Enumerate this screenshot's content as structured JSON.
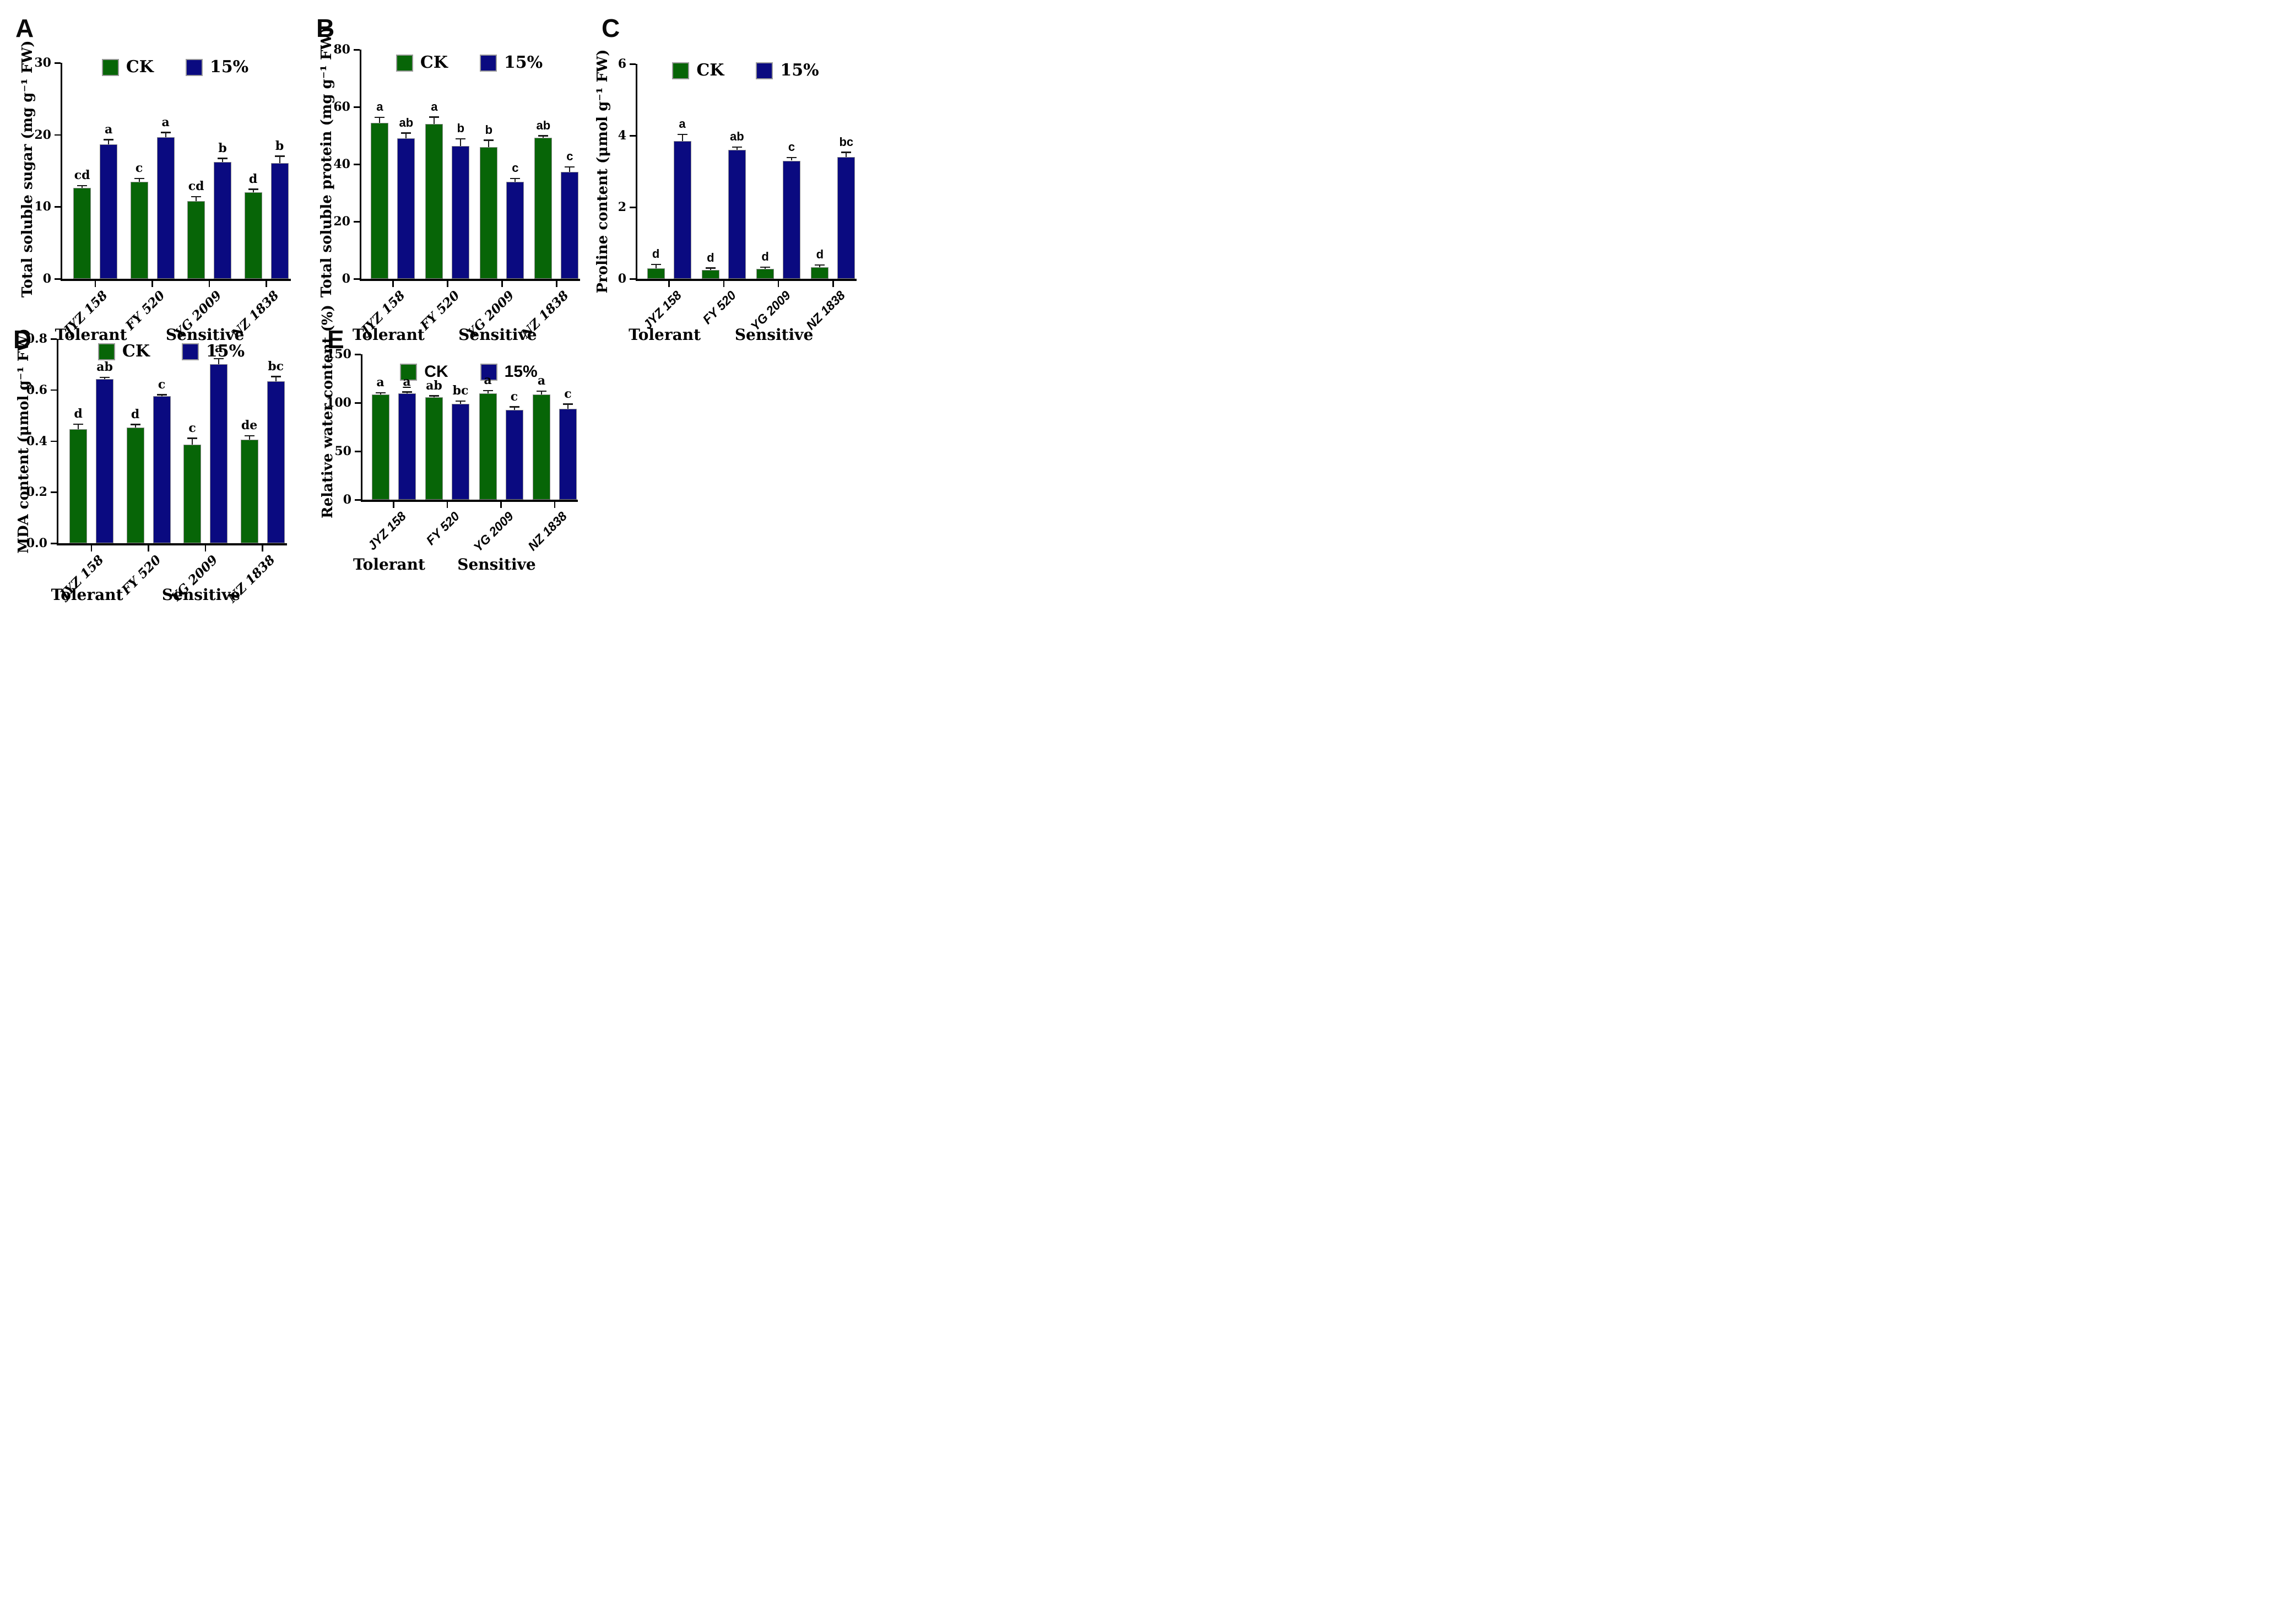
{
  "colors": {
    "ck": "#076507",
    "treatment": "#0a0a80",
    "axis": "#000000",
    "background": "#ffffff"
  },
  "chart_data": [
    {
      "type": "bar",
      "panel": "A",
      "ylabel": "Total soluble sugar (mg g⁻¹ FW)",
      "ylim": [
        0,
        30
      ],
      "ytick_values": [
        0,
        10,
        20,
        30
      ],
      "ytick_labels": [
        "0",
        "10",
        "20",
        "30"
      ],
      "categories": [
        "JYZ 158",
        "FY 520",
        "YG 2009",
        "NZ 1838"
      ],
      "category_groups": [
        {
          "label": "Tolerant",
          "at_group": 0
        },
        {
          "label": "Sensitive",
          "at_group": 2
        }
      ],
      "legend": [
        "CK",
        "15%"
      ],
      "grid": false,
      "series": [
        {
          "name": "CK",
          "color_key": "ck",
          "values": [
            12.6,
            13.5,
            10.8,
            12.0
          ],
          "errors": [
            0.3,
            0.4,
            0.6,
            0.4
          ],
          "sig_letters": [
            "cd",
            "c",
            "cd",
            "d"
          ],
          "underline": [
            false,
            false,
            false,
            false
          ]
        },
        {
          "name": "15%",
          "color_key": "treatment",
          "values": [
            18.7,
            19.7,
            16.2,
            16.1
          ],
          "errors": [
            0.6,
            0.6,
            0.5,
            0.9
          ],
          "sig_letters": [
            "a",
            "a",
            "b",
            "b"
          ],
          "underline": [
            false,
            false,
            false,
            false
          ]
        }
      ]
    },
    {
      "type": "bar",
      "panel": "B",
      "ylabel": "Total soluble protein (mg g⁻¹ FW)",
      "ylim": [
        0,
        80
      ],
      "ytick_values": [
        0,
        20,
        40,
        60,
        80
      ],
      "ytick_labels": [
        "0",
        "20",
        "40",
        "60",
        "80"
      ],
      "categories": [
        "JYZ 158",
        "FY 520",
        "YG 2009",
        "NZ 1838"
      ],
      "category_groups": [
        {
          "label": "Tolerant",
          "at_group": 0
        },
        {
          "label": "Sensitive",
          "at_group": 2
        }
      ],
      "legend": [
        "CK",
        "15%"
      ],
      "grid": false,
      "series": [
        {
          "name": "CK",
          "color_key": "ck",
          "values": [
            54.5,
            54.0,
            46.0,
            49.3
          ],
          "errors": [
            1.8,
            2.4,
            2.3,
            0.6
          ],
          "sig_letters": [
            "a",
            "a",
            "b",
            "ab"
          ],
          "underline": [
            false,
            false,
            false,
            false
          ]
        },
        {
          "name": "15%",
          "color_key": "treatment",
          "values": [
            49.0,
            46.3,
            33.8,
            37.3
          ],
          "errors": [
            1.8,
            2.5,
            1.2,
            1.7
          ],
          "sig_letters": [
            "ab",
            "b",
            "c",
            "c"
          ],
          "underline": [
            false,
            false,
            false,
            false
          ]
        }
      ]
    },
    {
      "type": "bar",
      "panel": "C",
      "ylabel": "Proline content (μmol g⁻¹ FW)",
      "ylim": [
        0,
        6
      ],
      "ytick_values": [
        0,
        2,
        4,
        6
      ],
      "ytick_labels": [
        "0",
        "2",
        "4",
        "6"
      ],
      "categories": [
        "JYZ 158",
        "FY 520",
        "YG 2009",
        "NZ 1838"
      ],
      "category_groups": [
        {
          "label": "Tolerant",
          "at_group": 0
        },
        {
          "label": "Sensitive",
          "at_group": 2
        }
      ],
      "legend": [
        "CK",
        "15%"
      ],
      "grid": false,
      "series": [
        {
          "name": "CK",
          "color_key": "ck",
          "values": [
            0.3,
            0.25,
            0.28,
            0.33
          ],
          "errors": [
            0.1,
            0.05,
            0.04,
            0.05
          ],
          "sig_letters": [
            "d",
            "d",
            "d",
            "d"
          ],
          "underline": [
            false,
            false,
            false,
            false
          ]
        },
        {
          "name": "15%",
          "color_key": "treatment",
          "values": [
            3.85,
            3.6,
            3.3,
            3.4
          ],
          "errors": [
            0.18,
            0.07,
            0.08,
            0.13
          ],
          "sig_letters": [
            "a",
            "ab",
            "c",
            "bc"
          ],
          "underline": [
            false,
            false,
            false,
            false
          ]
        }
      ]
    },
    {
      "type": "bar",
      "panel": "D",
      "ylabel": "MDA content (μmol g⁻¹ FW)",
      "ylim": [
        0,
        0.8
      ],
      "ytick_values": [
        0,
        0.2,
        0.4,
        0.6,
        0.8
      ],
      "ytick_labels": [
        "0.0",
        "0.2",
        "0.4",
        "0.6",
        "0.8"
      ],
      "categories": [
        "JYZ 158",
        "FY 520",
        "YG 2009",
        "NZ 1838"
      ],
      "category_groups": [
        {
          "label": "Tolerant",
          "at_group": 0
        },
        {
          "label": "Sensitive",
          "at_group": 2
        }
      ],
      "legend": [
        "CK",
        "15%"
      ],
      "grid": false,
      "series": [
        {
          "name": "CK",
          "color_key": "ck",
          "values": [
            0.447,
            0.452,
            0.385,
            0.405
          ],
          "errors": [
            0.018,
            0.012,
            0.025,
            0.015
          ],
          "sig_letters": [
            "d",
            "d",
            "c",
            "de"
          ],
          "underline": [
            false,
            false,
            false,
            false
          ]
        },
        {
          "name": "15%",
          "color_key": "treatment",
          "values": [
            0.642,
            0.575,
            0.7,
            0.635
          ],
          "errors": [
            0.006,
            0.006,
            0.022,
            0.017
          ],
          "sig_letters": [
            "ab",
            "c",
            "a",
            "bc"
          ],
          "underline": [
            false,
            false,
            false,
            false
          ]
        }
      ]
    },
    {
      "type": "bar",
      "panel": "E",
      "ylabel": "Relative water content (%)",
      "ylim": [
        0,
        150
      ],
      "ytick_values": [
        0,
        50,
        100,
        150
      ],
      "ytick_labels": [
        "0",
        "50",
        "100",
        "150"
      ],
      "categories": [
        "JYZ 158",
        "FY 520",
        "YG 2009",
        "NZ 1838"
      ],
      "category_groups": [
        {
          "label": "Tolerant",
          "at_group": 0
        },
        {
          "label": "Sensitive",
          "at_group": 2
        }
      ],
      "legend": [
        "CK",
        "15%"
      ],
      "grid": false,
      "series": [
        {
          "name": "CK",
          "color_key": "ck",
          "values": [
            108.5,
            105.5,
            109.5,
            108.5
          ],
          "errors": [
            1.5,
            1.6,
            3.0,
            3.3
          ],
          "sig_letters": [
            "a",
            "ab",
            "a",
            "a"
          ],
          "underline": [
            false,
            false,
            false,
            false
          ]
        },
        {
          "name": "15%",
          "color_key": "treatment",
          "values": [
            109.5,
            99.0,
            92.5,
            94.0
          ],
          "errors": [
            1.5,
            2.6,
            3.2,
            4.4
          ],
          "sig_letters": [
            "a",
            "bc",
            "c",
            "c"
          ],
          "underline": [
            true,
            false,
            false,
            false
          ]
        }
      ]
    }
  ]
}
